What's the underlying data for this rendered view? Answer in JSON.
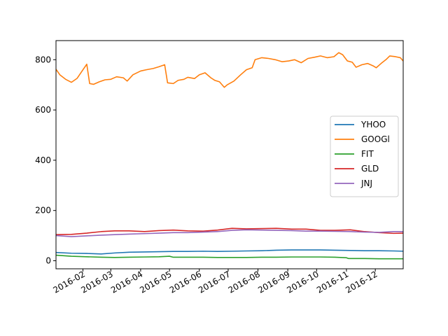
{
  "chart_data": {
    "type": "line",
    "title": "",
    "xlabel": "",
    "ylabel": "",
    "xlim": [
      "2016-01-04",
      "2016-12-30"
    ],
    "ylim": [
      -32,
      876
    ],
    "grid": false,
    "legend_position": "center-right",
    "x_ticks": [
      {
        "date": "2016-02-01",
        "label": "2016-02"
      },
      {
        "date": "2016-03-01",
        "label": "2016-03"
      },
      {
        "date": "2016-04-01",
        "label": "2016-04"
      },
      {
        "date": "2016-05-01",
        "label": "2016-05"
      },
      {
        "date": "2016-06-01",
        "label": "2016-06"
      },
      {
        "date": "2016-07-01",
        "label": "2016-07"
      },
      {
        "date": "2016-08-01",
        "label": "2016-08"
      },
      {
        "date": "2016-09-01",
        "label": "2016-09"
      },
      {
        "date": "2016-10-01",
        "label": "2016-10"
      },
      {
        "date": "2016-11-01",
        "label": "2016-11"
      },
      {
        "date": "2016-12-01",
        "label": "2016-12"
      }
    ],
    "y_ticks": [
      {
        "value": 0,
        "label": "0"
      },
      {
        "value": 200,
        "label": "200"
      },
      {
        "value": 400,
        "label": "400"
      },
      {
        "value": 600,
        "label": "600"
      },
      {
        "value": 800,
        "label": "800"
      }
    ],
    "series": [
      {
        "name": "YHOO",
        "color": "#1f77b4",
        "points": [
          [
            "2016-01-04",
            33
          ],
          [
            "2016-01-20",
            30
          ],
          [
            "2016-02-05",
            29
          ],
          [
            "2016-02-20",
            27
          ],
          [
            "2016-03-05",
            31
          ],
          [
            "2016-03-20",
            34
          ],
          [
            "2016-04-05",
            35
          ],
          [
            "2016-04-20",
            36
          ],
          [
            "2016-05-05",
            37
          ],
          [
            "2016-05-20",
            37
          ],
          [
            "2016-06-05",
            38
          ],
          [
            "2016-06-20",
            37
          ],
          [
            "2016-07-05",
            38
          ],
          [
            "2016-07-20",
            39
          ],
          [
            "2016-08-05",
            40
          ],
          [
            "2016-08-20",
            42
          ],
          [
            "2016-09-05",
            43
          ],
          [
            "2016-09-20",
            43
          ],
          [
            "2016-10-05",
            43
          ],
          [
            "2016-10-20",
            42
          ],
          [
            "2016-11-05",
            41
          ],
          [
            "2016-11-20",
            40
          ],
          [
            "2016-12-05",
            40
          ],
          [
            "2016-12-20",
            39
          ],
          [
            "2016-12-30",
            38
          ]
        ]
      },
      {
        "name": "GOOGl",
        "color": "#ff7f0e",
        "points": [
          [
            "2016-01-04",
            762
          ],
          [
            "2016-01-08",
            740
          ],
          [
            "2016-01-14",
            722
          ],
          [
            "2016-01-20",
            710
          ],
          [
            "2016-01-26",
            726
          ],
          [
            "2016-02-01",
            760
          ],
          [
            "2016-02-05",
            782
          ],
          [
            "2016-02-08",
            705
          ],
          [
            "2016-02-12",
            702
          ],
          [
            "2016-02-18",
            712
          ],
          [
            "2016-02-24",
            720
          ],
          [
            "2016-03-01",
            722
          ],
          [
            "2016-03-07",
            732
          ],
          [
            "2016-03-14",
            728
          ],
          [
            "2016-03-18",
            715
          ],
          [
            "2016-03-24",
            740
          ],
          [
            "2016-04-01",
            755
          ],
          [
            "2016-04-07",
            760
          ],
          [
            "2016-04-14",
            765
          ],
          [
            "2016-04-20",
            772
          ],
          [
            "2016-04-26",
            780
          ],
          [
            "2016-04-29",
            708
          ],
          [
            "2016-05-05",
            705
          ],
          [
            "2016-05-10",
            718
          ],
          [
            "2016-05-16",
            722
          ],
          [
            "2016-05-20",
            730
          ],
          [
            "2016-05-27",
            725
          ],
          [
            "2016-06-01",
            740
          ],
          [
            "2016-06-07",
            748
          ],
          [
            "2016-06-13",
            728
          ],
          [
            "2016-06-17",
            718
          ],
          [
            "2016-06-22",
            712
          ],
          [
            "2016-06-27",
            690
          ],
          [
            "2016-06-30",
            700
          ],
          [
            "2016-07-07",
            715
          ],
          [
            "2016-07-14",
            740
          ],
          [
            "2016-07-20",
            760
          ],
          [
            "2016-07-26",
            768
          ],
          [
            "2016-07-29",
            800
          ],
          [
            "2016-08-05",
            808
          ],
          [
            "2016-08-12",
            805
          ],
          [
            "2016-08-19",
            800
          ],
          [
            "2016-08-26",
            792
          ],
          [
            "2016-09-02",
            795
          ],
          [
            "2016-09-08",
            800
          ],
          [
            "2016-09-15",
            788
          ],
          [
            "2016-09-22",
            805
          ],
          [
            "2016-09-29",
            810
          ],
          [
            "2016-10-05",
            815
          ],
          [
            "2016-10-12",
            808
          ],
          [
            "2016-10-19",
            812
          ],
          [
            "2016-10-24",
            828
          ],
          [
            "2016-10-28",
            820
          ],
          [
            "2016-11-02",
            795
          ],
          [
            "2016-11-07",
            790
          ],
          [
            "2016-11-11",
            770
          ],
          [
            "2016-11-17",
            780
          ],
          [
            "2016-11-23",
            785
          ],
          [
            "2016-11-29",
            775
          ],
          [
            "2016-12-02",
            768
          ],
          [
            "2016-12-07",
            785
          ],
          [
            "2016-12-12",
            800
          ],
          [
            "2016-12-16",
            815
          ],
          [
            "2016-12-22",
            812
          ],
          [
            "2016-12-27",
            808
          ],
          [
            "2016-12-30",
            795
          ]
        ]
      },
      {
        "name": "FIT",
        "color": "#2ca02c",
        "points": [
          [
            "2016-01-04",
            22
          ],
          [
            "2016-01-20",
            18
          ],
          [
            "2016-02-05",
            16
          ],
          [
            "2016-02-20",
            14
          ],
          [
            "2016-03-05",
            13
          ],
          [
            "2016-03-20",
            14
          ],
          [
            "2016-04-05",
            15
          ],
          [
            "2016-04-20",
            16
          ],
          [
            "2016-05-01",
            18
          ],
          [
            "2016-05-05",
            14
          ],
          [
            "2016-05-20",
            14
          ],
          [
            "2016-06-05",
            14
          ],
          [
            "2016-06-20",
            13
          ],
          [
            "2016-07-05",
            13
          ],
          [
            "2016-07-20",
            13
          ],
          [
            "2016-08-05",
            14
          ],
          [
            "2016-08-20",
            14
          ],
          [
            "2016-09-05",
            15
          ],
          [
            "2016-09-20",
            15
          ],
          [
            "2016-10-05",
            15
          ],
          [
            "2016-10-20",
            14
          ],
          [
            "2016-11-01",
            12
          ],
          [
            "2016-11-03",
            9
          ],
          [
            "2016-11-20",
            9
          ],
          [
            "2016-12-05",
            8
          ],
          [
            "2016-12-20",
            8
          ],
          [
            "2016-12-30",
            8
          ]
        ]
      },
      {
        "name": "GLD",
        "color": "#d62728",
        "points": [
          [
            "2016-01-04",
            104
          ],
          [
            "2016-01-20",
            105
          ],
          [
            "2016-02-05",
            110
          ],
          [
            "2016-02-20",
            116
          ],
          [
            "2016-03-05",
            119
          ],
          [
            "2016-03-20",
            119
          ],
          [
            "2016-04-05",
            116
          ],
          [
            "2016-04-20",
            120
          ],
          [
            "2016-05-05",
            122
          ],
          [
            "2016-05-20",
            119
          ],
          [
            "2016-06-05",
            118
          ],
          [
            "2016-06-20",
            122
          ],
          [
            "2016-07-05",
            129
          ],
          [
            "2016-07-20",
            127
          ],
          [
            "2016-08-05",
            128
          ],
          [
            "2016-08-20",
            129
          ],
          [
            "2016-09-05",
            126
          ],
          [
            "2016-09-20",
            126
          ],
          [
            "2016-10-05",
            121
          ],
          [
            "2016-10-20",
            121
          ],
          [
            "2016-11-05",
            123
          ],
          [
            "2016-11-20",
            116
          ],
          [
            "2016-12-05",
            112
          ],
          [
            "2016-12-20",
            109
          ],
          [
            "2016-12-30",
            110
          ]
        ]
      },
      {
        "name": "JNJ",
        "color": "#9467bd",
        "points": [
          [
            "2016-01-04",
            100
          ],
          [
            "2016-01-20",
            96
          ],
          [
            "2016-02-05",
            99
          ],
          [
            "2016-02-20",
            102
          ],
          [
            "2016-03-05",
            104
          ],
          [
            "2016-03-20",
            106
          ],
          [
            "2016-04-05",
            108
          ],
          [
            "2016-04-20",
            110
          ],
          [
            "2016-05-05",
            112
          ],
          [
            "2016-05-20",
            112
          ],
          [
            "2016-06-05",
            114
          ],
          [
            "2016-06-20",
            116
          ],
          [
            "2016-07-05",
            121
          ],
          [
            "2016-07-20",
            123
          ],
          [
            "2016-08-05",
            122
          ],
          [
            "2016-08-20",
            121
          ],
          [
            "2016-09-05",
            120
          ],
          [
            "2016-09-20",
            118
          ],
          [
            "2016-10-05",
            118
          ],
          [
            "2016-10-20",
            117
          ],
          [
            "2016-11-05",
            116
          ],
          [
            "2016-11-20",
            114
          ],
          [
            "2016-12-05",
            113
          ],
          [
            "2016-12-20",
            116
          ],
          [
            "2016-12-30",
            116
          ]
        ]
      }
    ]
  }
}
